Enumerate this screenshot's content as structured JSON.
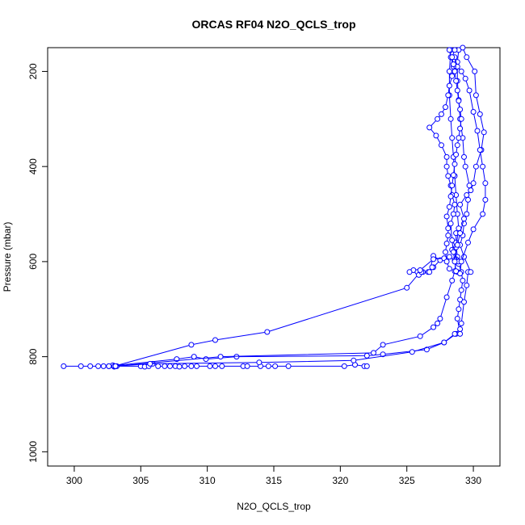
{
  "chart_data": {
    "type": "scatter",
    "title": "ORCAS RF04 N2O_QCLS_trop",
    "xlabel": "N2O_QCLS_trop",
    "ylabel": "Pressure (mbar)",
    "xlim": [
      298,
      332
    ],
    "ylim": [
      1030,
      150
    ],
    "y_reversed": true,
    "grid": false,
    "legend": "none",
    "x_ticks": [
      300,
      305,
      310,
      315,
      320,
      325,
      330
    ],
    "y_ticks": [
      200,
      400,
      600,
      800,
      1000
    ],
    "marker": "open-circle",
    "connect_points": true,
    "series_color": "#0000ff",
    "series": [
      {
        "points": [
          [
            299.2,
            820
          ],
          [
            300.5,
            820
          ],
          [
            301.2,
            820
          ],
          [
            301.8,
            820
          ],
          [
            302.2,
            820
          ],
          [
            302.6,
            820
          ],
          [
            302.9,
            818
          ],
          [
            303.0,
            821
          ],
          [
            303.2,
            820
          ],
          [
            305.0,
            820
          ],
          [
            305.3,
            821
          ],
          [
            305.6,
            820
          ],
          [
            305.9,
            815
          ],
          [
            306.3,
            820
          ],
          [
            306.8,
            820
          ],
          [
            307.2,
            820
          ],
          [
            307.6,
            820
          ],
          [
            307.9,
            821
          ],
          [
            308.3,
            820
          ],
          [
            308.8,
            820
          ],
          [
            309.2,
            820
          ],
          [
            310.2,
            820
          ],
          [
            310.6,
            820
          ],
          [
            311.1,
            820
          ],
          [
            312.7,
            820
          ],
          [
            313.0,
            820
          ],
          [
            314.0,
            820
          ],
          [
            314.6,
            820
          ],
          [
            315.1,
            820
          ],
          [
            316.1,
            820
          ],
          [
            320.3,
            820
          ],
          [
            321.1,
            817
          ],
          [
            321.8,
            820
          ],
          [
            322.0,
            820
          ]
        ]
      },
      {
        "points": [
          [
            302.6,
            820
          ],
          [
            307.7,
            805
          ],
          [
            309.0,
            800
          ],
          [
            309.9,
            805
          ],
          [
            312.2,
            800
          ],
          [
            322.0,
            798
          ],
          [
            323.2,
            795
          ],
          [
            326.5,
            785
          ],
          [
            327.8,
            770
          ],
          [
            328.7,
            752
          ],
          [
            329.0,
            752
          ],
          [
            328.8,
            720
          ],
          [
            328.9,
            700
          ],
          [
            329.0,
            680
          ],
          [
            329.1,
            660
          ],
          [
            329.2,
            640
          ],
          [
            329.1,
            622
          ],
          [
            328.9,
            605
          ],
          [
            328.8,
            590
          ],
          [
            328.7,
            560
          ],
          [
            328.7,
            540
          ]
        ]
      },
      {
        "points": [
          [
            303.0,
            820
          ],
          [
            308.8,
            775
          ],
          [
            310.6,
            765
          ],
          [
            314.5,
            748
          ],
          [
            325.0,
            655
          ],
          [
            326.0,
            622
          ],
          [
            325.5,
            618
          ],
          [
            325.2,
            622
          ],
          [
            325.8,
            622
          ],
          [
            326.2,
            622
          ],
          [
            325.9,
            628
          ],
          [
            326.6,
            622
          ],
          [
            327.0,
            612
          ],
          [
            327.5,
            597
          ],
          [
            327.0,
            588
          ],
          [
            326.7,
            622
          ],
          [
            326.9,
            612
          ]
        ]
      },
      {
        "points": [
          [
            303.1,
            820
          ],
          [
            311.0,
            800
          ],
          [
            322.5,
            792
          ],
          [
            323.2,
            775
          ],
          [
            326.0,
            757
          ],
          [
            327.0,
            738
          ],
          [
            327.3,
            730
          ],
          [
            327.5,
            720
          ],
          [
            328.0,
            675
          ],
          [
            328.4,
            640
          ],
          [
            328.6,
            620
          ],
          [
            328.7,
            595
          ],
          [
            328.7,
            570
          ],
          [
            328.9,
            530
          ],
          [
            328.8,
            500
          ],
          [
            328.7,
            460
          ],
          [
            328.6,
            420
          ],
          [
            328.5,
            380
          ],
          [
            328.4,
            340
          ],
          [
            328.3,
            300
          ],
          [
            328.2,
            250
          ],
          [
            328.2,
            200
          ],
          [
            328.3,
            155
          ]
        ]
      },
      {
        "points": [
          [
            303.1,
            820
          ],
          [
            305.7,
            815
          ],
          [
            313.9,
            812
          ],
          [
            321.0,
            808
          ],
          [
            325.4,
            790
          ],
          [
            327.8,
            770
          ],
          [
            328.6,
            752
          ],
          [
            329.0,
            742
          ],
          [
            329.1,
            730
          ],
          [
            329.3,
            685
          ],
          [
            329.5,
            650
          ],
          [
            329.6,
            622
          ],
          [
            329.8,
            622
          ],
          [
            329.3,
            590
          ],
          [
            329.0,
            565
          ],
          [
            329.2,
            545
          ],
          [
            329.3,
            520
          ],
          [
            329.5,
            500
          ],
          [
            329.6,
            470
          ],
          [
            329.7,
            440
          ],
          [
            329.4,
            400
          ],
          [
            329.3,
            380
          ],
          [
            329.2,
            340
          ],
          [
            329.0,
            300
          ],
          [
            328.9,
            260
          ],
          [
            328.8,
            220
          ],
          [
            328.8,
            180
          ],
          [
            328.9,
            155
          ]
        ]
      },
      {
        "points": [
          [
            326.1,
            622
          ],
          [
            326.0,
            618
          ],
          [
            327.0,
            595
          ],
          [
            327.8,
            593
          ],
          [
            328.2,
            590
          ],
          [
            328.6,
            597
          ],
          [
            328.9,
            600
          ],
          [
            328.4,
            575
          ],
          [
            328.8,
            565
          ],
          [
            329.0,
            540
          ],
          [
            329.3,
            510
          ],
          [
            329.0,
            480
          ],
          [
            329.5,
            460
          ],
          [
            329.8,
            450
          ],
          [
            330.0,
            435
          ],
          [
            330.2,
            400
          ],
          [
            330.6,
            365
          ],
          [
            330.8,
            328
          ],
          [
            330.5,
            290
          ],
          [
            330.2,
            250
          ],
          [
            330.1,
            200
          ],
          [
            329.5,
            170
          ],
          [
            329.2,
            150
          ]
        ]
      },
      {
        "points": [
          [
            328.8,
            622
          ],
          [
            329.0,
            625
          ],
          [
            329.1,
            600
          ],
          [
            329.6,
            560
          ],
          [
            330.0,
            532
          ],
          [
            330.7,
            500
          ],
          [
            330.9,
            470
          ],
          [
            330.9,
            435
          ],
          [
            330.7,
            400
          ],
          [
            330.5,
            365
          ],
          [
            330.3,
            325
          ],
          [
            330.0,
            285
          ],
          [
            329.7,
            240
          ],
          [
            329.4,
            215
          ],
          [
            329.1,
            200
          ],
          [
            328.8,
            190
          ],
          [
            328.6,
            170
          ]
        ]
      },
      {
        "points": [
          [
            328.7,
            620
          ],
          [
            328.6,
            600
          ],
          [
            328.5,
            580
          ],
          [
            328.4,
            555
          ],
          [
            328.3,
            520
          ],
          [
            328.5,
            500
          ],
          [
            328.6,
            480
          ],
          [
            328.4,
            460
          ],
          [
            328.3,
            440
          ],
          [
            328.1,
            420
          ],
          [
            328.0,
            400
          ],
          [
            328.0,
            380
          ],
          [
            327.6,
            355
          ],
          [
            327.2,
            335
          ],
          [
            326.7,
            318
          ],
          [
            327.3,
            300
          ],
          [
            327.6,
            290
          ],
          [
            327.9,
            275
          ],
          [
            328.1,
            250
          ],
          [
            328.2,
            230
          ],
          [
            328.4,
            210
          ],
          [
            328.5,
            190
          ],
          [
            328.3,
            170
          ],
          [
            328.2,
            155
          ]
        ]
      },
      {
        "points": [
          [
            328.2,
            615
          ],
          [
            328.0,
            600
          ],
          [
            327.9,
            580
          ],
          [
            328.0,
            562
          ],
          [
            328.1,
            545
          ],
          [
            328.1,
            530
          ],
          [
            328.0,
            505
          ],
          [
            328.2,
            485
          ],
          [
            328.3,
            463
          ],
          [
            328.4,
            440
          ],
          [
            328.5,
            418
          ],
          [
            328.6,
            395
          ],
          [
            328.7,
            375
          ],
          [
            328.8,
            355
          ],
          [
            328.9,
            340
          ],
          [
            329.0,
            320
          ],
          [
            329.1,
            300
          ],
          [
            329.0,
            280
          ],
          [
            328.9,
            262
          ],
          [
            328.8,
            240
          ],
          [
            328.7,
            220
          ],
          [
            328.6,
            200
          ],
          [
            328.5,
            185
          ],
          [
            328.4,
            170
          ],
          [
            328.6,
            155
          ]
        ]
      }
    ]
  }
}
